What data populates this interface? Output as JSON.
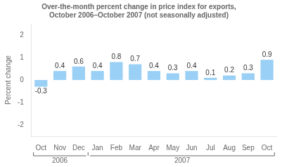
{
  "chart_data": {
    "type": "bar",
    "title": "Over-the-month percent change in price index for exports,\nOctober 2006–October 2007 (not seasonally adjusted)",
    "categories": [
      "Oct",
      "Nov",
      "Dec",
      "Jan",
      "Feb",
      "Mar",
      "Apr",
      "May",
      "Jun",
      "Jul",
      "Aug",
      "Sep",
      "Oct"
    ],
    "category_groups": [
      "2006",
      "2006",
      "2006",
      "2007",
      "2007",
      "2007",
      "2007",
      "2007",
      "2007",
      "2007",
      "2007",
      "2007",
      "2007"
    ],
    "values": [
      -0.3,
      0.4,
      0.6,
      0.4,
      0.8,
      0.7,
      0.4,
      0.3,
      0.4,
      0.1,
      0.2,
      0.3,
      0.9
    ],
    "ylabel": "Percent change",
    "ylim": [
      -2.5,
      2.5
    ],
    "yticks": [
      -2,
      -1,
      0,
      1,
      2
    ],
    "grid": false,
    "data_labels": true
  }
}
